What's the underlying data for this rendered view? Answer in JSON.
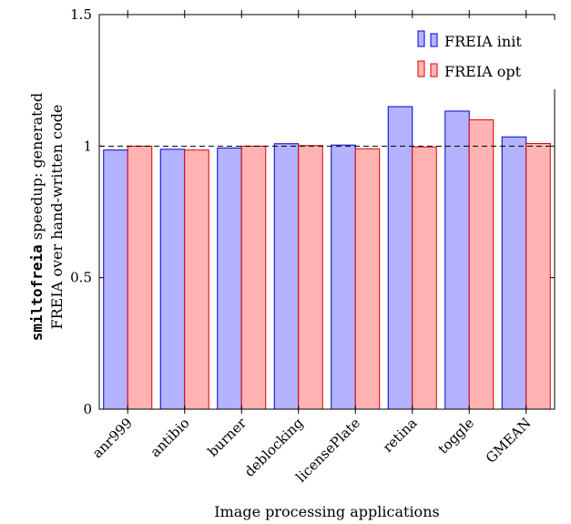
{
  "chart_data": {
    "type": "bar",
    "categories": [
      "anr999",
      "antibio",
      "burner",
      "deblocking",
      "licensePlate",
      "retina",
      "toggle",
      "GMEAN"
    ],
    "series": [
      {
        "name": "FREIA init",
        "values": [
          0.985,
          0.988,
          0.993,
          1.009,
          1.004,
          1.15,
          1.133,
          1.035
        ],
        "fill": "#b3b3ff",
        "stroke": "#0000cc"
      },
      {
        "name": "FREIA opt",
        "values": [
          1.0,
          0.985,
          1.0,
          1.002,
          0.99,
          0.997,
          1.1,
          1.01
        ],
        "fill": "#ffb3b3",
        "stroke": "#dd0000"
      }
    ],
    "yticks": [
      "0",
      "0.5",
      "1",
      "1.5"
    ],
    "ylim": [
      0,
      1.5
    ],
    "reference_line": 1,
    "xlabel": "Image processing applications",
    "ylabel_code": "smiltofreia",
    "ylabel_line1_rest": " speedup: generated",
    "ylabel_line2": "FREIA over hand-written code",
    "legend_position": "top-right",
    "grid": false
  }
}
